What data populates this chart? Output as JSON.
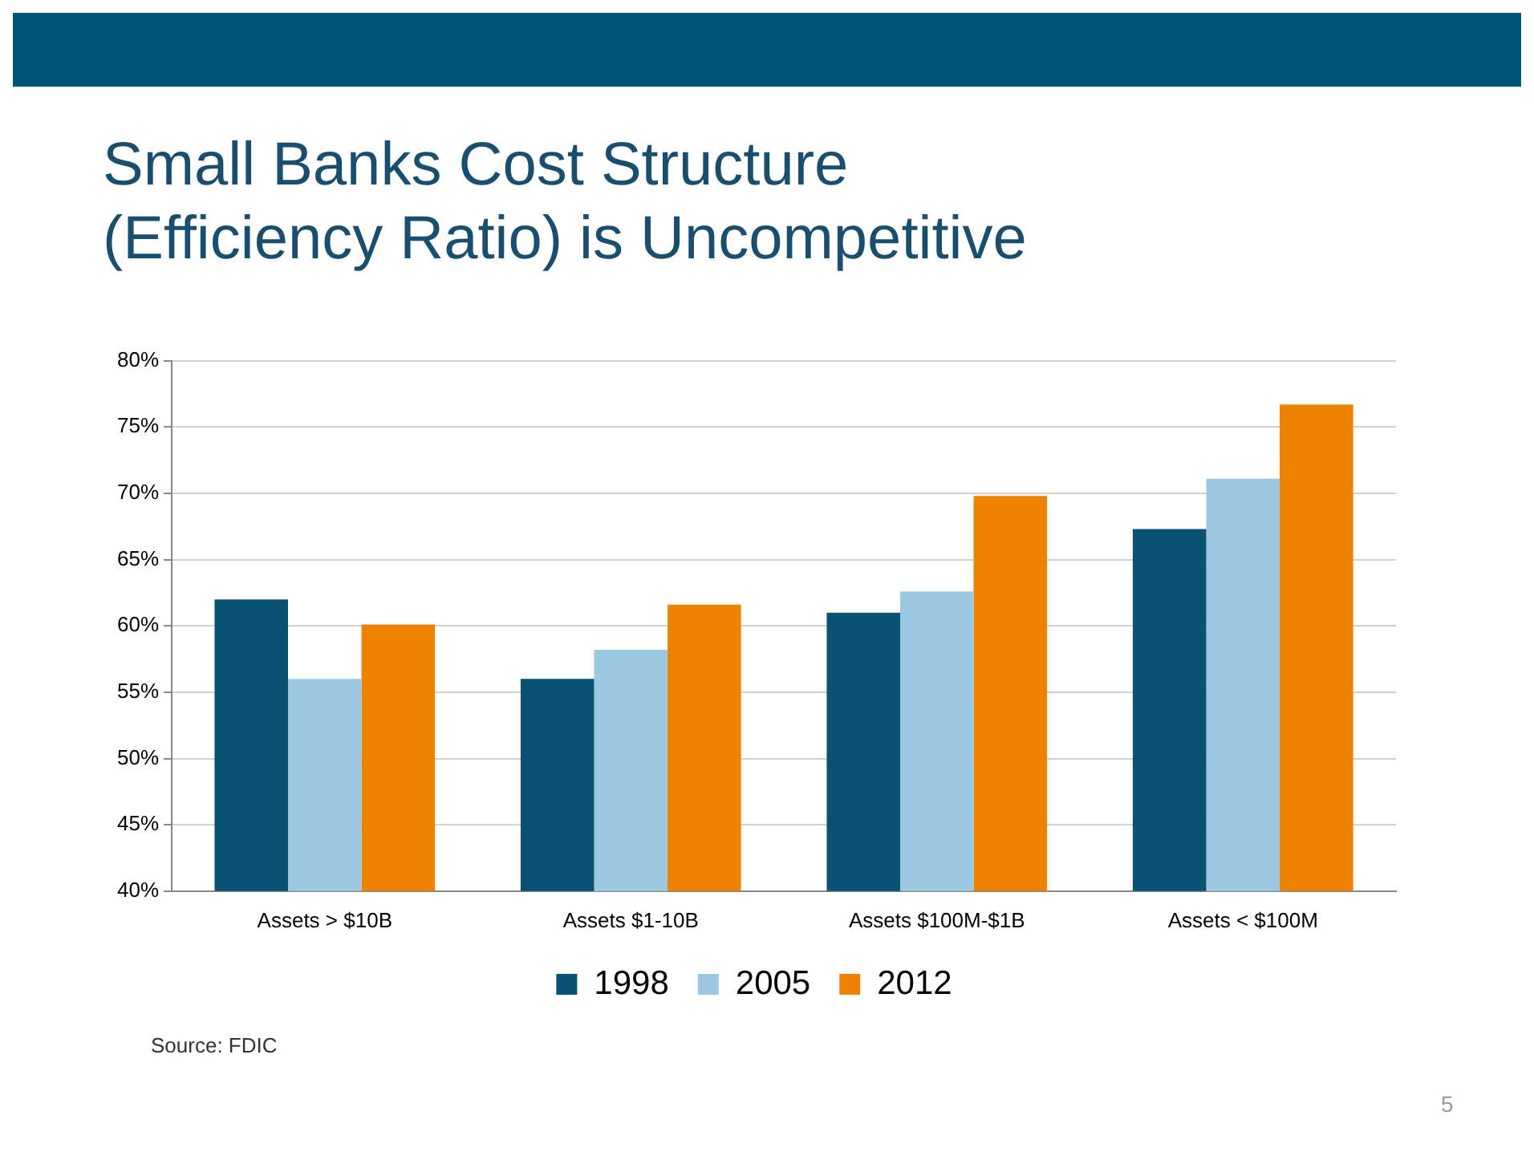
{
  "chart_data": {
    "type": "bar",
    "title": "Small Banks Cost Structure\n(Efficiency Ratio) is Uncompetitive",
    "categories": [
      "Assets > $10B",
      "Assets $1-10B",
      "Assets $100M-$1B",
      "Assets < $100M"
    ],
    "series": [
      {
        "name": "1998",
        "color": "#0a5272",
        "values": [
          62.0,
          56.0,
          61.0,
          67.3
        ]
      },
      {
        "name": "2005",
        "color": "#9dc8e2",
        "values": [
          56.0,
          58.2,
          62.6,
          71.1
        ]
      },
      {
        "name": "2012",
        "color": "#ec8200",
        "values": [
          60.1,
          61.6,
          69.8,
          76.7
        ]
      }
    ],
    "ylim": [
      40,
      80
    ],
    "yticks": [
      {
        "value": 40,
        "label": "40%"
      },
      {
        "value": 45,
        "label": "45%"
      },
      {
        "value": 50,
        "label": "50%"
      },
      {
        "value": 55,
        "label": "55%"
      },
      {
        "value": 60,
        "label": "60%"
      },
      {
        "value": 65,
        "label": "65%"
      },
      {
        "value": 70,
        "label": "70%"
      },
      {
        "value": 75,
        "label": "75%"
      },
      {
        "value": 80,
        "label": "80%"
      }
    ],
    "grid": "y",
    "legend": "bottom",
    "annotations": [
      "Source: FDIC",
      "5"
    ]
  }
}
